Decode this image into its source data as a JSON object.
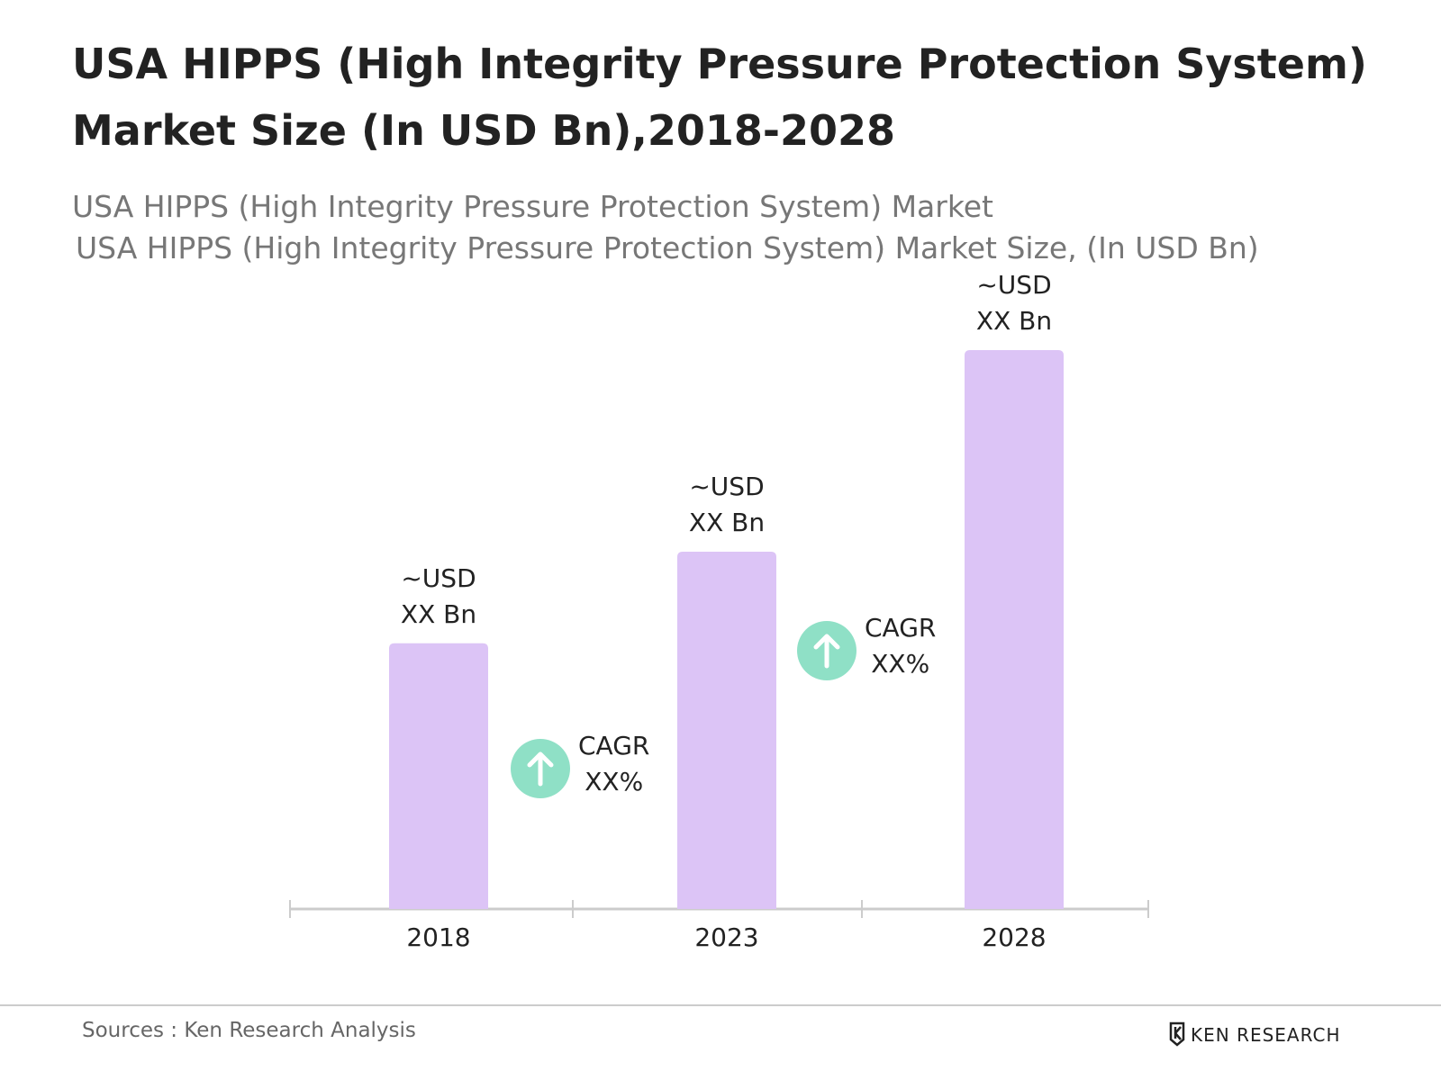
{
  "title": "USA HIPPS (High Integrity Pressure Protection System) Market Size (In USD Bn),2018-2028",
  "subtitle": "USA HIPPS (High Integrity Pressure Protection System) Market",
  "source": "Sources : Ken Research Analysis",
  "brand": "KEN RESEARCH",
  "chart_data": {
    "type": "bar",
    "title": "USA HIPPS (High Integrity Pressure Protection System) Market Size, (In USD Bn)",
    "categories": [
      "2018",
      "2023",
      "2028"
    ],
    "values": [
      2.9,
      3.9,
      6.1
    ],
    "value_labels": [
      "~USD\nXX Bn",
      "~USD\nXX Bn",
      "~USD\nXX Bn"
    ],
    "color": "#dcc4f6",
    "annotations": [
      "CAGR\nXX%",
      "CAGR\nXX%"
    ],
    "annotation_color": "#8fe0c6"
  }
}
